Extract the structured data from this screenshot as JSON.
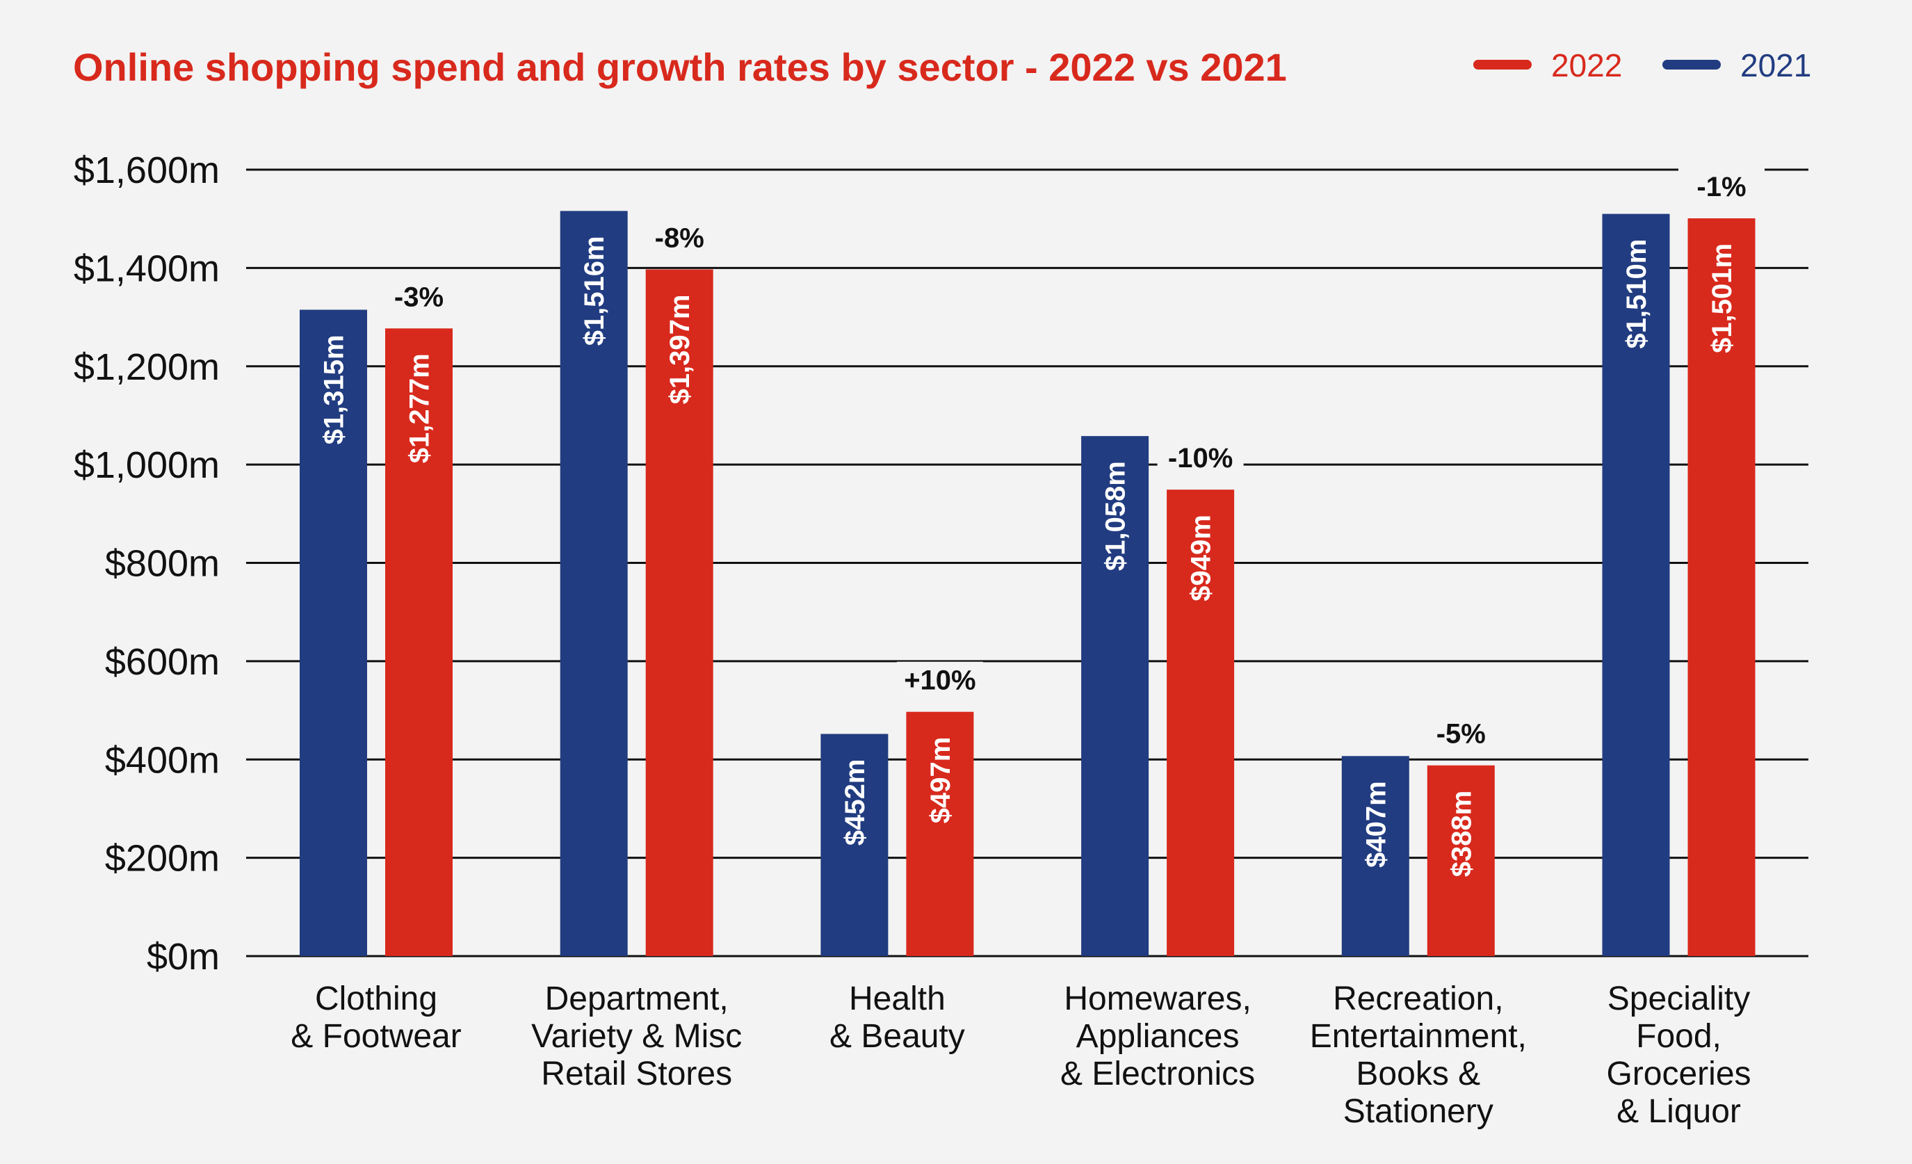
{
  "chart_data": {
    "type": "bar",
    "title": "Online shopping spend and growth rates by sector - 2022 vs 2021",
    "categories": [
      [
        "Clothing",
        "& Footwear"
      ],
      [
        "Department,",
        "Variety & Misc",
        "Retail Stores"
      ],
      [
        "Health",
        "& Beauty"
      ],
      [
        "Homewares,",
        "Appliances",
        "& Electronics"
      ],
      [
        "Recreation,",
        "Entertainment,",
        "Books &",
        "Stationery"
      ],
      [
        "Speciality",
        "Food,",
        "Groceries",
        "& Liquor"
      ]
    ],
    "series": [
      {
        "name": "2021",
        "color": "#213c80",
        "values": [
          1315,
          1516,
          452,
          1058,
          407,
          1510
        ],
        "labels": [
          "$1,315m",
          "$1,516m",
          "$452m",
          "$1,058m",
          "$407m",
          "$1,510m"
        ]
      },
      {
        "name": "2022",
        "color": "#d8291d",
        "values": [
          1277,
          1397,
          497,
          949,
          388,
          1501
        ],
        "labels": [
          "$1,277m",
          "$1,397m",
          "$497m",
          "$949m",
          "$388m",
          "$1,501m"
        ]
      }
    ],
    "growth_labels": [
      "-3%",
      "-8%",
      "+10%",
      "-10%",
      "-5%",
      "-1%"
    ],
    "ylim": [
      0,
      1600
    ],
    "yticks": [
      0,
      200,
      400,
      600,
      800,
      1000,
      1200,
      1400,
      1600
    ],
    "ytick_labels": [
      "$0m",
      "$200m",
      "$400m",
      "$600m",
      "$800m",
      "$1,000m",
      "$1,200m",
      "$1,400m",
      "$1,600m"
    ],
    "grid": true,
    "legend": {
      "placement": "top-right",
      "entries": [
        {
          "name": "2022",
          "color": "#d8291d"
        },
        {
          "name": "2021",
          "color": "#213c80"
        }
      ]
    }
  }
}
